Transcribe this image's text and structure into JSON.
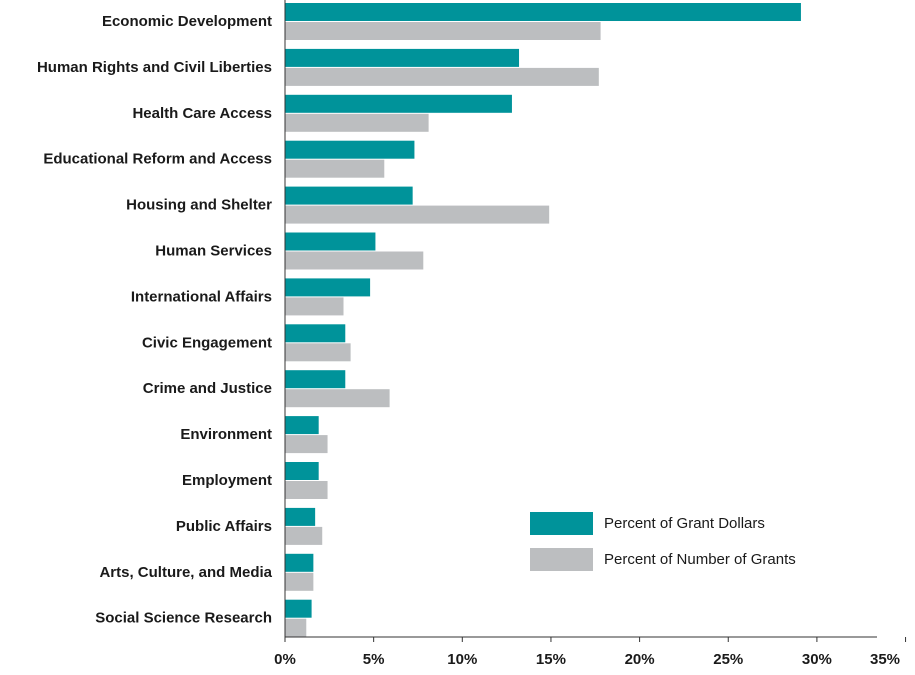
{
  "chart_data": {
    "type": "bar",
    "orientation": "horizontal",
    "categories": [
      "Economic Development",
      "Human Rights and Civil Liberties",
      "Health Care Access",
      "Educational Reform and Access",
      "Housing and Shelter",
      "Human Services",
      "International Affairs",
      "Civic Engagement",
      "Crime and Justice",
      "Environment",
      "Employment",
      "Public Affairs",
      "Arts, Culture, and Media",
      "Social Science Research"
    ],
    "series": [
      {
        "name": "Percent of Grant Dollars",
        "color": "#00939a",
        "values": [
          29.1,
          13.2,
          12.8,
          7.3,
          7.2,
          5.1,
          4.8,
          3.4,
          3.4,
          1.9,
          1.9,
          1.7,
          1.6,
          1.5
        ]
      },
      {
        "name": "Percent of Number of Grants",
        "color": "#bcbec0",
        "values": [
          17.8,
          17.7,
          8.1,
          5.6,
          14.9,
          7.8,
          3.3,
          3.7,
          5.9,
          2.4,
          2.4,
          2.1,
          1.6,
          1.2
        ]
      }
    ],
    "xlim": [
      0,
      35
    ],
    "xticks": [
      {
        "value": 0,
        "label": "0%"
      },
      {
        "value": 5,
        "label": "5%"
      },
      {
        "value": 10,
        "label": "10%"
      },
      {
        "value": 15,
        "label": "15%"
      },
      {
        "value": 20,
        "label": "20%"
      },
      {
        "value": 25,
        "label": "25%"
      },
      {
        "value": 30,
        "label": "30%"
      },
      {
        "value": 35,
        "label": "35%"
      }
    ],
    "legend": "lower right"
  }
}
